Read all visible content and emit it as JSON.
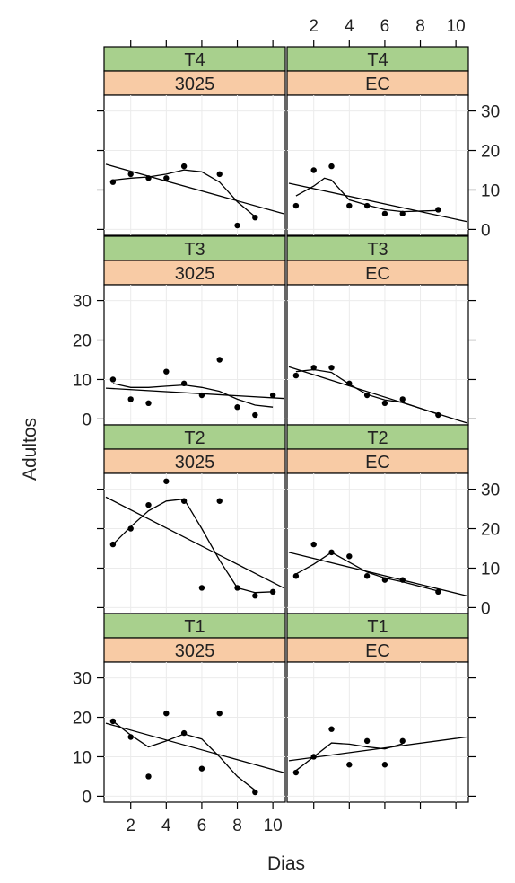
{
  "chart_data": {
    "type": "scatter",
    "title": "",
    "xlabel": "Dias",
    "ylabel": "Adultos",
    "xlim": [
      0.5,
      10.7
    ],
    "ylim": [
      -1.5,
      34
    ],
    "x_ticks": [
      2,
      4,
      6,
      8,
      10
    ],
    "y_ticks": [
      0,
      10,
      20,
      30
    ],
    "grid": true,
    "strip_colors": {
      "treatment": "#a8d08d",
      "variety": "#f8cba5"
    },
    "point_color": "#000000",
    "panels": [
      {
        "treatment": "T4",
        "variety": "3025",
        "points": [
          [
            1,
            12
          ],
          [
            2,
            14
          ],
          [
            3,
            13
          ],
          [
            4,
            13
          ],
          [
            5,
            16
          ],
          [
            7,
            14
          ],
          [
            8,
            1
          ],
          [
            9,
            3
          ]
        ],
        "regression": [
          [
            0.6,
            16.5
          ],
          [
            10.6,
            4
          ]
        ],
        "smooth": [
          [
            1,
            12.5
          ],
          [
            2,
            13
          ],
          [
            3,
            13.3
          ],
          [
            4,
            14
          ],
          [
            5,
            15.1
          ],
          [
            6,
            14.6
          ],
          [
            7,
            12
          ],
          [
            8,
            7
          ],
          [
            9,
            3.2
          ]
        ]
      },
      {
        "treatment": "T4",
        "variety": "EC",
        "points": [
          [
            1,
            6
          ],
          [
            2,
            15
          ],
          [
            3,
            16
          ],
          [
            4,
            6
          ],
          [
            5,
            6
          ],
          [
            6,
            4
          ],
          [
            7,
            4
          ],
          [
            9,
            5
          ]
        ],
        "regression": [
          [
            0.6,
            11.7
          ],
          [
            10.6,
            2
          ]
        ],
        "smooth": [
          [
            1,
            8.5
          ],
          [
            2,
            11
          ],
          [
            2.6,
            13
          ],
          [
            3,
            12.5
          ],
          [
            4,
            7.5
          ],
          [
            5,
            6.2
          ],
          [
            6,
            5
          ],
          [
            7,
            4.5
          ],
          [
            9,
            4.8
          ]
        ]
      },
      {
        "treatment": "T3",
        "variety": "3025",
        "points": [
          [
            1,
            10
          ],
          [
            2,
            5
          ],
          [
            3,
            4
          ],
          [
            4,
            12
          ],
          [
            5,
            9
          ],
          [
            6,
            6
          ],
          [
            7,
            15
          ],
          [
            8,
            3
          ],
          [
            9,
            1
          ],
          [
            10,
            6
          ]
        ],
        "regression": [
          [
            0.6,
            7.8
          ],
          [
            10.6,
            5.2
          ]
        ],
        "smooth": [
          [
            1,
            9
          ],
          [
            2,
            8
          ],
          [
            3,
            8
          ],
          [
            4,
            8.3
          ],
          [
            5,
            8.6
          ],
          [
            6,
            8
          ],
          [
            7,
            7
          ],
          [
            8,
            5
          ],
          [
            9,
            3.5
          ],
          [
            10,
            3
          ]
        ]
      },
      {
        "treatment": "T3",
        "variety": "EC",
        "points": [
          [
            1,
            11
          ],
          [
            2,
            13
          ],
          [
            3,
            13
          ],
          [
            4,
            9
          ],
          [
            5,
            6
          ],
          [
            6,
            4
          ],
          [
            7,
            5
          ],
          [
            9,
            1
          ]
        ],
        "regression": [
          [
            0.6,
            13.2
          ],
          [
            10.6,
            -1
          ]
        ],
        "smooth": [
          [
            1,
            12
          ],
          [
            2,
            12.5
          ],
          [
            3,
            11.8
          ],
          [
            4,
            8.8
          ],
          [
            5,
            6.2
          ],
          [
            6,
            4.8
          ],
          [
            7,
            4.2
          ],
          [
            9,
            1.2
          ]
        ]
      },
      {
        "treatment": "T2",
        "variety": "3025",
        "points": [
          [
            1,
            16
          ],
          [
            2,
            20
          ],
          [
            3,
            26
          ],
          [
            4,
            32
          ],
          [
            5,
            27
          ],
          [
            6,
            5
          ],
          [
            7,
            27
          ],
          [
            8,
            5
          ],
          [
            9,
            3
          ],
          [
            10,
            4
          ]
        ],
        "regression": [
          [
            0.6,
            28
          ],
          [
            10.6,
            5
          ]
        ],
        "smooth": [
          [
            1,
            16
          ],
          [
            2,
            20.5
          ],
          [
            3,
            24.5
          ],
          [
            4,
            27
          ],
          [
            5,
            27.5
          ],
          [
            6,
            20
          ],
          [
            7,
            12
          ],
          [
            8,
            5
          ],
          [
            9,
            3.8
          ],
          [
            10,
            4
          ]
        ]
      },
      {
        "treatment": "T2",
        "variety": "EC",
        "points": [
          [
            1,
            8
          ],
          [
            2,
            16
          ],
          [
            3,
            14
          ],
          [
            4,
            13
          ],
          [
            5,
            8
          ],
          [
            6,
            7
          ],
          [
            7,
            7
          ],
          [
            9,
            4
          ]
        ],
        "regression": [
          [
            0.6,
            14
          ],
          [
            10.6,
            3
          ]
        ],
        "smooth": [
          [
            1,
            8.5
          ],
          [
            2,
            11
          ],
          [
            3,
            14
          ],
          [
            4,
            11.5
          ],
          [
            5,
            9
          ],
          [
            6,
            7.5
          ],
          [
            7,
            6.5
          ],
          [
            9,
            4.2
          ]
        ]
      },
      {
        "treatment": "T1",
        "variety": "3025",
        "points": [
          [
            1,
            19
          ],
          [
            2,
            15
          ],
          [
            3,
            5
          ],
          [
            4,
            21
          ],
          [
            5,
            16
          ],
          [
            6,
            7
          ],
          [
            7,
            21
          ],
          [
            9,
            1
          ]
        ],
        "regression": [
          [
            0.6,
            18.5
          ],
          [
            10.6,
            6
          ]
        ],
        "smooth": [
          [
            1,
            19
          ],
          [
            2,
            15.5
          ],
          [
            3,
            12.5
          ],
          [
            4,
            14
          ],
          [
            5,
            15.8
          ],
          [
            6,
            14.5
          ],
          [
            7,
            10
          ],
          [
            8,
            5
          ],
          [
            9,
            1.5
          ]
        ]
      },
      {
        "treatment": "T1",
        "variety": "EC",
        "points": [
          [
            1,
            6
          ],
          [
            2,
            10
          ],
          [
            3,
            17
          ],
          [
            4,
            8
          ],
          [
            5,
            14
          ],
          [
            6,
            8
          ],
          [
            7,
            14
          ]
        ],
        "regression": [
          [
            0.6,
            9
          ],
          [
            10.6,
            15
          ]
        ],
        "smooth": [
          [
            1,
            6.5
          ],
          [
            2,
            10
          ],
          [
            3,
            13.5
          ],
          [
            4,
            13.2
          ],
          [
            5,
            12.5
          ],
          [
            6,
            12
          ],
          [
            7,
            13.3
          ]
        ]
      }
    ]
  }
}
